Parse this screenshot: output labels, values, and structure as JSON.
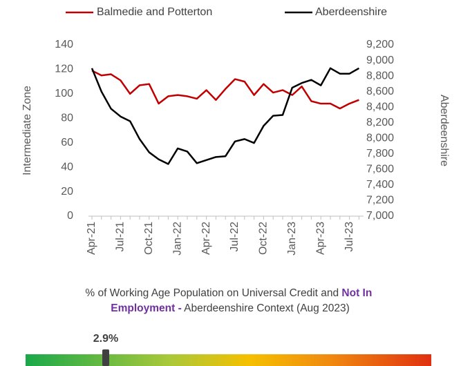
{
  "chart_data": {
    "type": "line",
    "y_label": "Intermediate Zone",
    "y2_label": "Aberdeenshire",
    "categories": [
      "Apr-21",
      null,
      null,
      "Jul-21",
      null,
      null,
      "Oct-21",
      null,
      null,
      "Jan-22",
      null,
      null,
      "Apr-22",
      null,
      null,
      "Jul-22",
      null,
      null,
      "Oct-22",
      null,
      null,
      "Jan-23",
      null,
      null,
      "Apr-23",
      null,
      null,
      "Jul-23",
      null
    ],
    "series": [
      {
        "name": "Balmedie and Potterton",
        "color": "#c00000",
        "axis": "y",
        "values": [
          119,
          115,
          116,
          111,
          100,
          107,
          108,
          92,
          98,
          99,
          98,
          96,
          103,
          95,
          104,
          112,
          110,
          99,
          108,
          101,
          103,
          99,
          106,
          94,
          92,
          92,
          88,
          92,
          95
        ]
      },
      {
        "name": "Aberdeenshire",
        "color": "#000000",
        "axis": "y2",
        "values": [
          8900,
          8600,
          8380,
          8280,
          8220,
          7990,
          7820,
          7730,
          7670,
          7870,
          7830,
          7680,
          7720,
          7760,
          7770,
          7960,
          7990,
          7940,
          8160,
          8290,
          8300,
          8650,
          8710,
          8750,
          8680,
          8900,
          8830,
          8830,
          8900
        ]
      }
    ],
    "ylim": [
      0,
      140
    ],
    "yticks": [
      0,
      20,
      40,
      60,
      80,
      100,
      120,
      140
    ],
    "y2lim": [
      7000,
      9200
    ],
    "y2ticks": [
      {
        "value": 7000,
        "label": "7,000"
      },
      {
        "value": 7200,
        "label": "7,200"
      },
      {
        "value": 7400,
        "label": "7,400"
      },
      {
        "value": 7600,
        "label": "7,600"
      },
      {
        "value": 7800,
        "label": "7,800"
      },
      {
        "value": 8000,
        "label": "8,000"
      },
      {
        "value": 8200,
        "label": "8,200"
      },
      {
        "value": 8400,
        "label": "8,400"
      },
      {
        "value": 8600,
        "label": "8,600"
      },
      {
        "value": 8800,
        "label": "8,800"
      },
      {
        "value": 9000,
        "label": "9,000"
      },
      {
        "value": 9200,
        "label": "9,200"
      }
    ],
    "grid": false,
    "legend": "top"
  },
  "gauge": {
    "title_start": "% of Working Age Population on Universal Credit and ",
    "title_emphasis": "Not In Employment -",
    "title_end": " Aberdeenshire Context (Aug 2023)",
    "value": 2.9,
    "value_label": "2.9%"
  }
}
